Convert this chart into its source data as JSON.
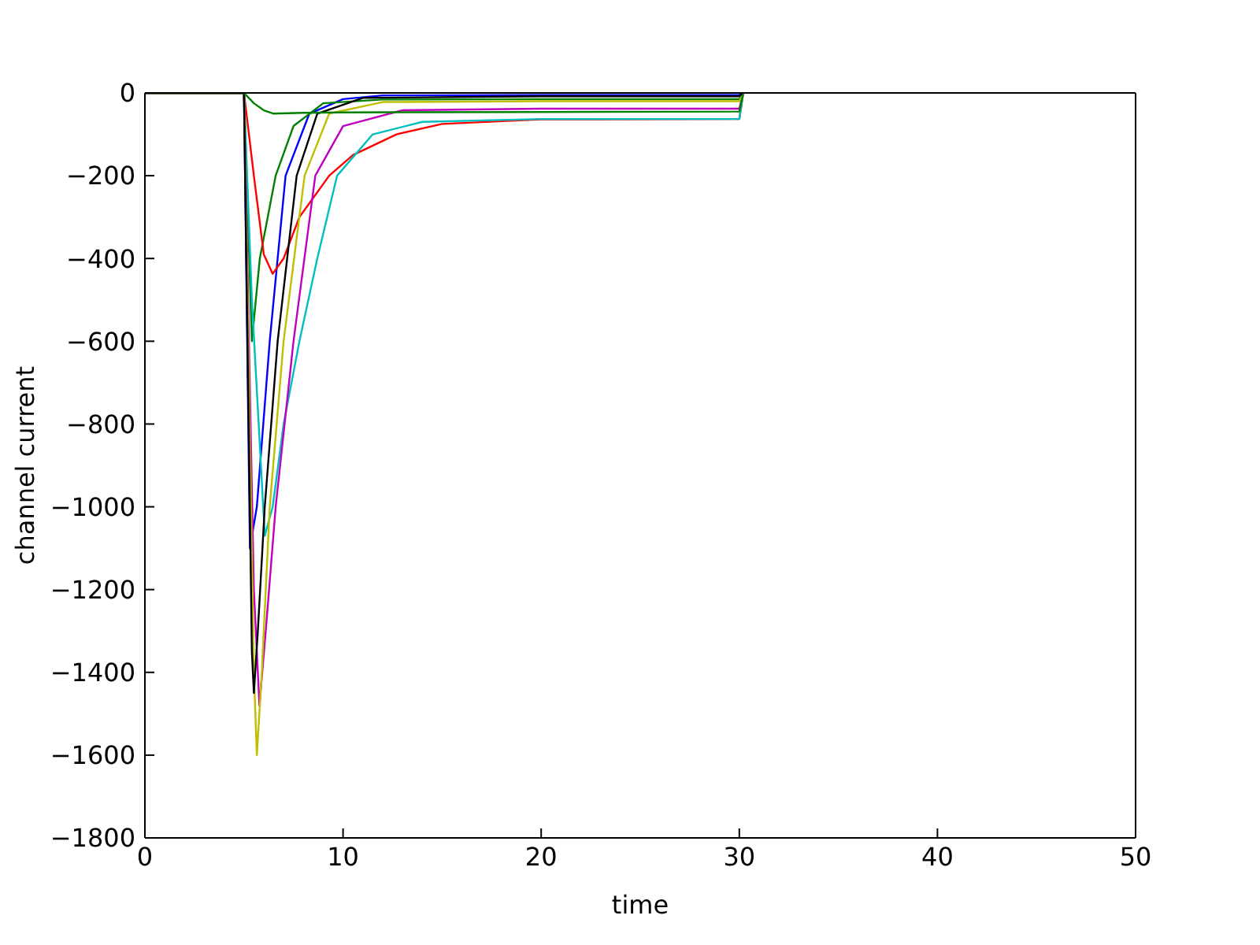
{
  "chart_data": {
    "type": "line",
    "xlabel": "time",
    "ylabel": "channel current",
    "xlim": [
      0,
      50
    ],
    "ylim": [
      -1800,
      0
    ],
    "xticks": [
      0,
      10,
      20,
      30,
      40,
      50
    ],
    "yticks": [
      -1800,
      -1600,
      -1400,
      -1200,
      -1000,
      -800,
      -600,
      -400,
      -200,
      0
    ],
    "grid": false,
    "marker": "none",
    "line_style": "solid",
    "series": [
      {
        "color": "#0000ff",
        "x": [
          0,
          5,
          5.3,
          5.65,
          6.3,
          7.1,
          8.3,
          10,
          12,
          20,
          30,
          30.2
        ],
        "values": [
          0,
          0,
          -1100,
          -1000,
          -600,
          -200,
          -50,
          -15,
          -6,
          -5,
          -5,
          0
        ]
      },
      {
        "color": "#008000",
        "x": [
          0,
          5,
          5.4,
          5.8,
          6.6,
          7.5,
          9,
          12,
          20,
          30,
          30.2
        ],
        "values": [
          0,
          0,
          -600,
          -400,
          -200,
          -80,
          -25,
          -16,
          -15,
          -15,
          0
        ]
      },
      {
        "color": "#ff0000",
        "x": [
          0,
          5,
          5.5,
          6,
          6.45,
          7,
          7.8,
          9.3,
          10.5,
          12.7,
          15,
          20,
          30,
          30.2
        ],
        "values": [
          0,
          0,
          -200,
          -390,
          -437,
          -400,
          -300,
          -200,
          -150,
          -100,
          -75,
          -64,
          -63,
          0
        ]
      },
      {
        "color": "#00bfbf",
        "x": [
          0,
          5,
          5.4,
          6.05,
          6.45,
          7,
          7.8,
          8.7,
          9.7,
          11.5,
          14,
          20,
          30,
          30.2
        ],
        "values": [
          0,
          0,
          -500,
          -1070,
          -1000,
          -800,
          -600,
          -400,
          -200,
          -100,
          -70,
          -63,
          -63,
          0
        ]
      },
      {
        "color": "#bf00bf",
        "x": [
          0,
          5,
          5.5,
          5.78,
          6.1,
          6.6,
          7.5,
          8.6,
          10,
          13,
          20,
          30,
          30.2
        ],
        "values": [
          0,
          0,
          -1200,
          -1480,
          -1300,
          -1000,
          -600,
          -200,
          -80,
          -42,
          -38,
          -38,
          0
        ]
      },
      {
        "color": "#bfbf00",
        "x": [
          0,
          5,
          5.5,
          5.65,
          5.9,
          6.3,
          7,
          8.06,
          9.3,
          12,
          20,
          30,
          30.2
        ],
        "values": [
          0,
          0,
          -1400,
          -1600,
          -1400,
          -1000,
          -600,
          -200,
          -50,
          -22,
          -20,
          -20,
          0
        ]
      },
      {
        "color": "#000000",
        "x": [
          0,
          5,
          5.4,
          5.5,
          5.7,
          6.05,
          6.7,
          7.66,
          8.7,
          11,
          20,
          30,
          30.2
        ],
        "values": [
          0,
          0,
          -1350,
          -1450,
          -1300,
          -1000,
          -600,
          -200,
          -50,
          -12,
          -8,
          -8,
          0
        ]
      },
      {
        "color": "#008000",
        "x": [
          0,
          5,
          5.5,
          6,
          6.5,
          8,
          10,
          20,
          30,
          30.2
        ],
        "values": [
          0,
          0,
          -25,
          -42,
          -50,
          -48,
          -47,
          -46,
          -45,
          0
        ]
      }
    ]
  }
}
